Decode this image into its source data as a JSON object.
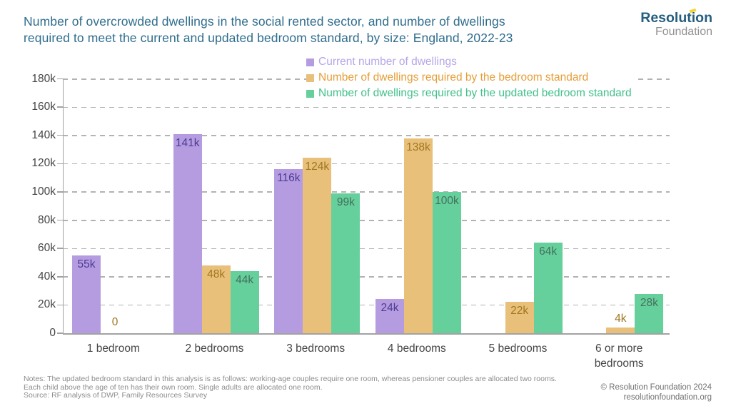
{
  "header": {
    "title_line1": "Number of overcrowded dwellings in the social rented sector, and number of dwellings",
    "title_line2": "required to meet the current and updated bedroom standard, by  size: England, 2022-23",
    "logo": {
      "brand": "Resolution",
      "sub": "Foundation",
      "accent_color": "#f4d430"
    }
  },
  "chart_data": {
    "type": "bar",
    "title": "Number of overcrowded dwellings in the social rented sector, and number of dwellings required to meet the current and updated bedroom standard, by size: England, 2022-23",
    "categories": [
      "1 bedroom",
      "2 bedrooms",
      "3 bedrooms",
      "4 bedrooms",
      "5 bedrooms",
      "6 or more bedrooms"
    ],
    "series": [
      {
        "name": "Current number of dwellings",
        "values_k": [
          55,
          141,
          116,
          24,
          null,
          null
        ],
        "labels": [
          "55k",
          "141k",
          "116k",
          "24k",
          "",
          ""
        ],
        "bar_color": "#b59ce1",
        "label_color": "#4c3b92",
        "legend_text_color": "#b5a6e6"
      },
      {
        "name": "Number of dwellings required by the bedroom standard",
        "values_k": [
          0,
          48,
          124,
          138,
          22,
          4
        ],
        "labels": [
          "0",
          "48k",
          "124k",
          "138k",
          "22k",
          "4k"
        ],
        "bar_color": "#e9c07a",
        "label_color": "#a0761f",
        "legend_text_color": "#e59e38"
      },
      {
        "name": "Number of dwellings required by the updated bedroom standard",
        "values_k": [
          null,
          44,
          99,
          100,
          64,
          28
        ],
        "labels": [
          "",
          "44k",
          "99k",
          "100k",
          "64k",
          "28k"
        ],
        "bar_color": "#65d09c",
        "label_color": "#44705e",
        "legend_text_color": "#42c08b"
      }
    ],
    "y_ticks": [
      "0",
      "20k",
      "40k",
      "60k",
      "80k",
      "100k",
      "120k",
      "140k",
      "160k",
      "180k"
    ],
    "y_tick_step_k": 20,
    "ylim_k": [
      0,
      180
    ],
    "grid": "dashed horizontal",
    "legend_position": "top-center",
    "axis_color": "#a2a2a2",
    "grid_color": "#b2b2b2",
    "title_color": "#2f6d8d"
  },
  "footnotes": {
    "line1": "Notes: The updated bedroom standard in this analysis is as follows: working-age couples require one room, whereas pensioner couples are allocated two rooms.",
    "line2": "Each child above the age of ten has their own room. Single adults are allocated one room.",
    "source": "Source: RF analysis of DWP, Family Resources Survey"
  },
  "footer_right": {
    "copyright": "© Resolution Foundation 2024",
    "website": "resolutionfoundation.org"
  }
}
